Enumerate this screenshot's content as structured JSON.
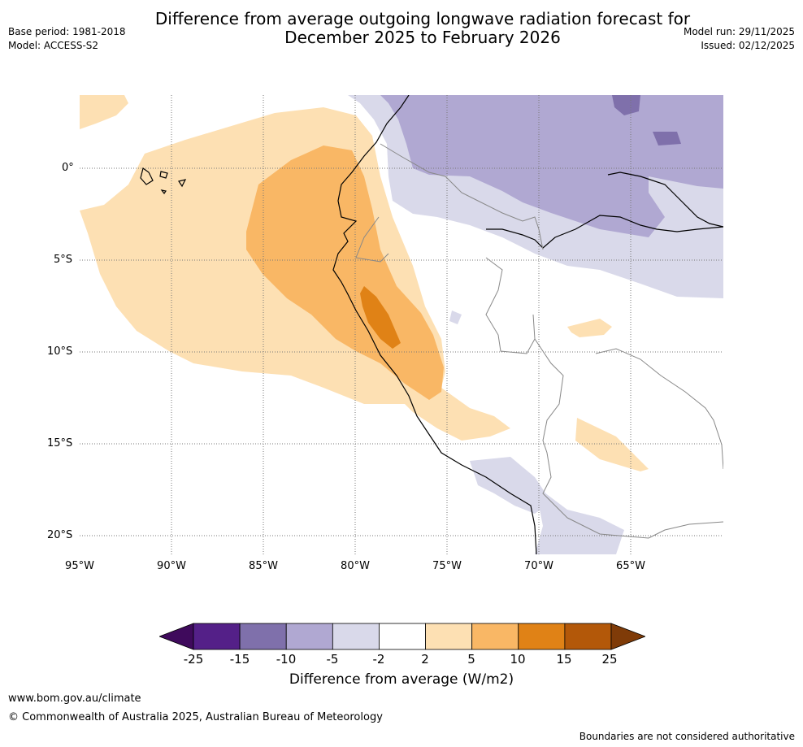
{
  "title": "Difference from average outgoing longwave radiation forecast for\nDecember 2025 to February 2026",
  "meta_left": [
    "Base period: 1981-2018",
    "Model: ACCESS-S2"
  ],
  "meta_right": [
    "Model run: 29/11/2025",
    "Issued: 02/12/2025"
  ],
  "map": {
    "lat_labels": [
      "0°",
      "5°S",
      "10°S",
      "15°S",
      "20°S"
    ],
    "lon_labels": [
      "95°W",
      "90°W",
      "85°W",
      "80°W",
      "75°W",
      "70°W",
      "65°W"
    ],
    "region": "Western South America and eastern Pacific"
  },
  "colorbar": {
    "ticks": [
      "-25",
      "-15",
      "-10",
      "-5",
      "-2",
      "2",
      "5",
      "10",
      "15",
      "25"
    ],
    "colors": [
      "#3f0a5c",
      "#542088",
      "#7f70ab",
      "#b0a8d2",
      "#d9d9ea",
      "#ffffff",
      "#fde0b3",
      "#f9b765",
      "#e08216",
      "#b35809",
      "#7f3b08"
    ],
    "title": "Difference from average (W/m2)"
  },
  "footer": {
    "url": "www.bom.gov.au/climate",
    "copyright": "© Commonwealth of Australia 2025, Australian Bureau of Meteorology",
    "disclaimer": "Boundaries are not considered authoritative"
  }
}
